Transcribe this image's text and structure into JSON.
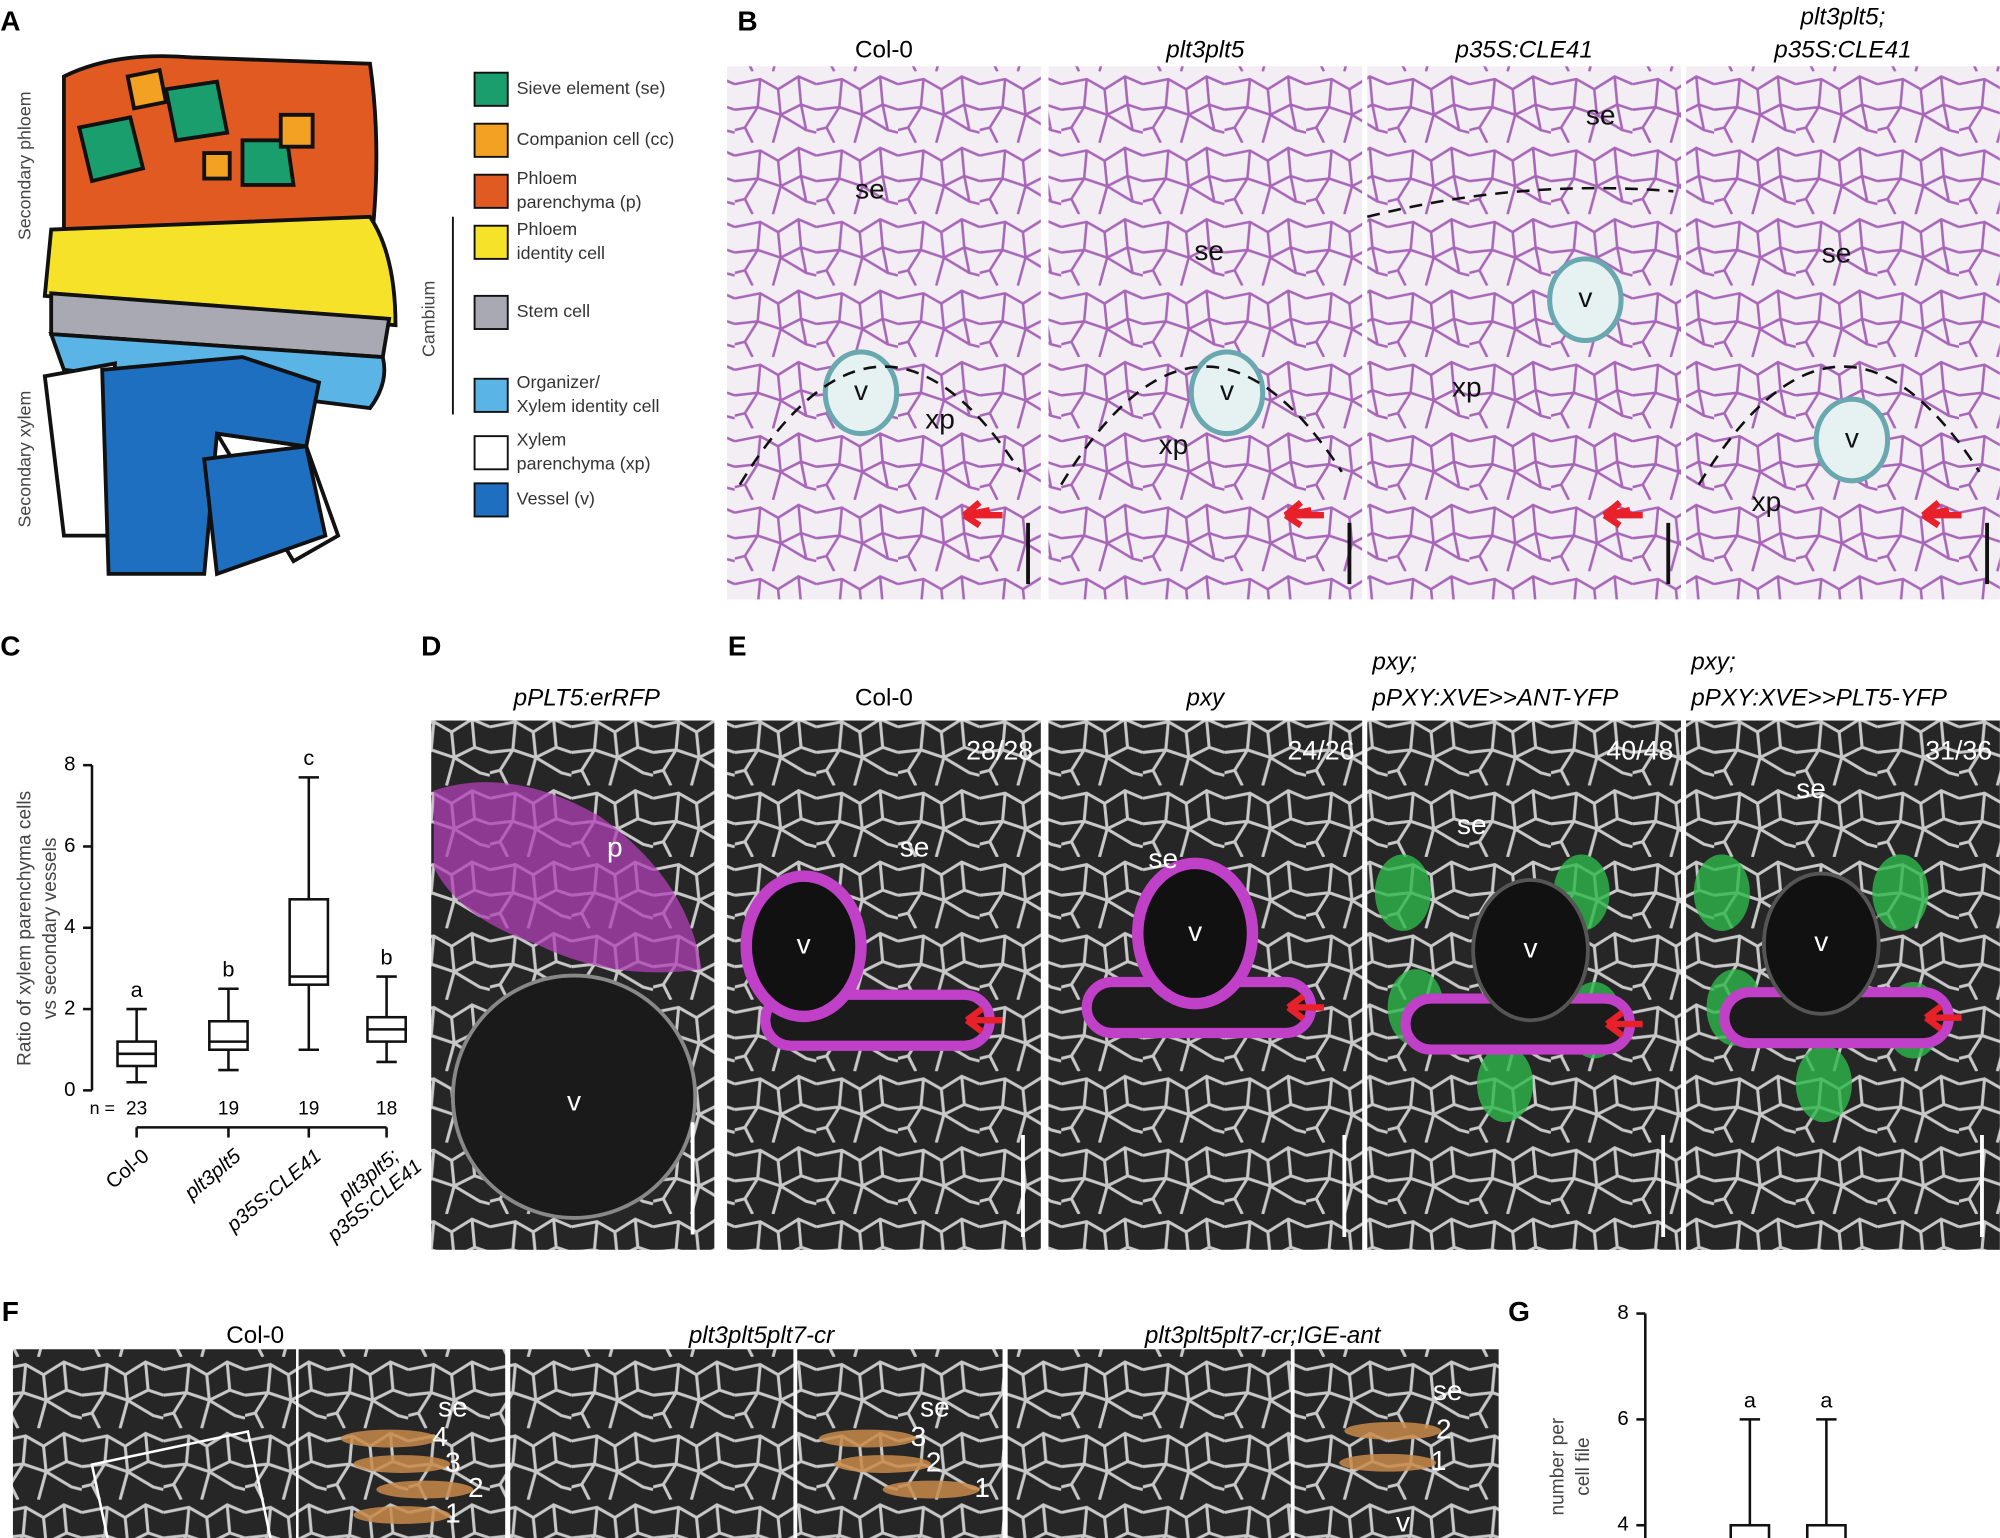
{
  "A": {
    "label": "A",
    "phloem_label": "Secondary phloem",
    "xylem_label": "Secondary xylem",
    "cambium_label": "Cambium",
    "legend": [
      {
        "color": "#1a9e6e",
        "lines": [
          "Sieve element (se)"
        ]
      },
      {
        "color": "#f2a122",
        "lines": [
          "Companion cell (cc)"
        ]
      },
      {
        "color": "#e05a22",
        "lines": [
          "Phloem",
          "parenchyma (p)"
        ]
      },
      {
        "color": "#f7e22a",
        "lines": [
          "Phloem",
          "identity cell"
        ]
      },
      {
        "color": "#a9a9b4",
        "lines": [
          "Stem cell"
        ]
      },
      {
        "color": "#5ab4e6",
        "lines": [
          "Organizer/",
          "Xylem identity cell"
        ]
      },
      {
        "color": "#ffffff",
        "lines": [
          "Xylem",
          "parenchyma (xp)"
        ]
      },
      {
        "color": "#1f6fc0",
        "lines": [
          "Vessel (v)"
        ]
      }
    ]
  },
  "B": {
    "label": "B",
    "columns": [
      {
        "title": [
          "Col-0"
        ],
        "marks": [
          "se",
          "v",
          "xp"
        ]
      },
      {
        "title": [
          "plt3plt5"
        ],
        "marks": [
          "se",
          "v",
          "xp"
        ]
      },
      {
        "title": [
          "p35S:CLE41"
        ],
        "marks": [
          "se",
          "v",
          "xp"
        ]
      },
      {
        "title": [
          "plt3plt5;",
          "p35S:CLE41"
        ],
        "marks": [
          "se",
          "v",
          "xp"
        ]
      }
    ]
  },
  "C": {
    "label": "C",
    "chart": {
      "type": "box",
      "ylabel": [
        "Ratio of xylem parenchyma cells",
        "vs secondary vessels"
      ],
      "ylim": [
        0,
        8
      ],
      "yticks": [
        0,
        2,
        4,
        6,
        8
      ],
      "n_label": "n =",
      "categories": [
        [
          "Col-0"
        ],
        [
          "plt3plt5"
        ],
        [
          "p35S:CLE41"
        ],
        [
          "plt3plt5;",
          "p35S:CLE41"
        ]
      ],
      "n": [
        23,
        19,
        19,
        18
      ],
      "letters": [
        "a",
        "b",
        "c",
        "b"
      ],
      "boxes": [
        {
          "min": 0.2,
          "q1": 0.6,
          "median": 0.9,
          "q3": 1.2,
          "max": 2.0
        },
        {
          "min": 0.5,
          "q1": 1.0,
          "median": 1.2,
          "q3": 1.7,
          "max": 2.5
        },
        {
          "min": 1.0,
          "q1": 2.6,
          "median": 2.8,
          "q3": 4.7,
          "max": 7.7
        },
        {
          "min": 0.7,
          "q1": 1.2,
          "median": 1.5,
          "q3": 1.8,
          "max": 2.8
        }
      ]
    }
  },
  "D": {
    "label": "D",
    "title": "pPLT5:erRFP",
    "marks": [
      "p",
      "v"
    ]
  },
  "E": {
    "label": "E",
    "columns": [
      {
        "title": [
          "Col-0"
        ],
        "count": "28/28",
        "marks": [
          "se",
          "v"
        ]
      },
      {
        "title": [
          "pxy"
        ],
        "count": "24/26",
        "marks": [
          "se",
          "v"
        ]
      },
      {
        "title": [
          "pxy;",
          "pPXY:XVE>>ANT-YFP"
        ],
        "count": "40/48",
        "marks": [
          "se",
          "v"
        ]
      },
      {
        "title": [
          "pxy;",
          "pPXY:XVE>>PLT5-YFP"
        ],
        "count": "31/36",
        "marks": [
          "se",
          "v"
        ]
      }
    ]
  },
  "F": {
    "label": "F",
    "columns": [
      {
        "title": "Col-0",
        "marks": [
          "se",
          "4",
          "3",
          "2",
          "1"
        ]
      },
      {
        "title": "plt3plt5plt7-cr",
        "marks": [
          "se",
          "3",
          "2",
          "1"
        ]
      },
      {
        "title": "plt3plt5plt7-cr;IGE-ant",
        "marks": [
          "se",
          "2",
          "1",
          "v"
        ]
      }
    ]
  },
  "G": {
    "label": "G",
    "chart": {
      "type": "box",
      "ylabel": [
        "number per",
        "cell file"
      ],
      "ylim": [
        0,
        8
      ],
      "yticks": [
        4,
        6,
        8
      ],
      "letters": [
        "a",
        "a"
      ],
      "boxes": [
        {
          "q3": 4,
          "max": 6
        },
        {
          "q3": 4,
          "max": 6
        }
      ]
    }
  }
}
